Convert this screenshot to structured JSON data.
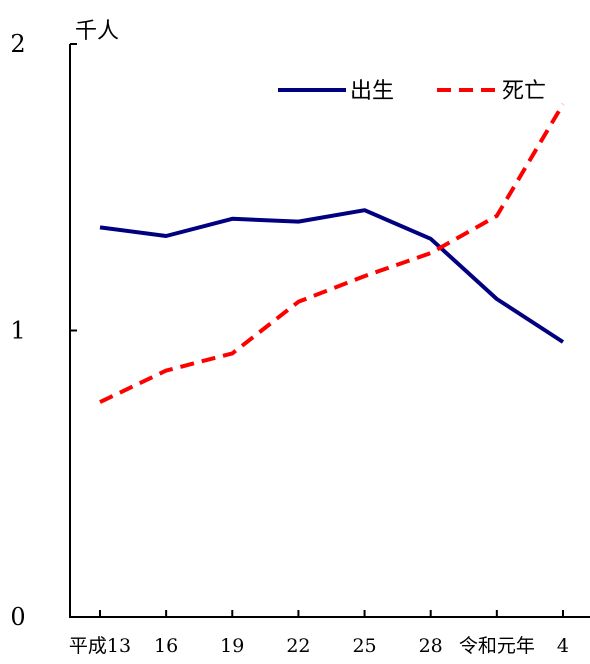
{
  "chart_data": {
    "type": "line",
    "ylabel": "千人",
    "ylim": [
      0,
      2
    ],
    "yticks": [
      0,
      1,
      2
    ],
    "categories": [
      "平成13",
      "16",
      "19",
      "22",
      "25",
      "28",
      "令和元年",
      "4"
    ],
    "legend_position": "top-right",
    "grid": false,
    "series": [
      {
        "name": "出生",
        "color": "#000080",
        "dash": "solid",
        "values": [
          1.36,
          1.33,
          1.39,
          1.38,
          1.42,
          1.32,
          1.11,
          0.96
        ]
      },
      {
        "name": "死亡",
        "color": "#ff0000",
        "dash": "dashed",
        "values": [
          0.75,
          0.86,
          0.92,
          1.1,
          1.19,
          1.27,
          1.4,
          1.79
        ]
      }
    ]
  }
}
